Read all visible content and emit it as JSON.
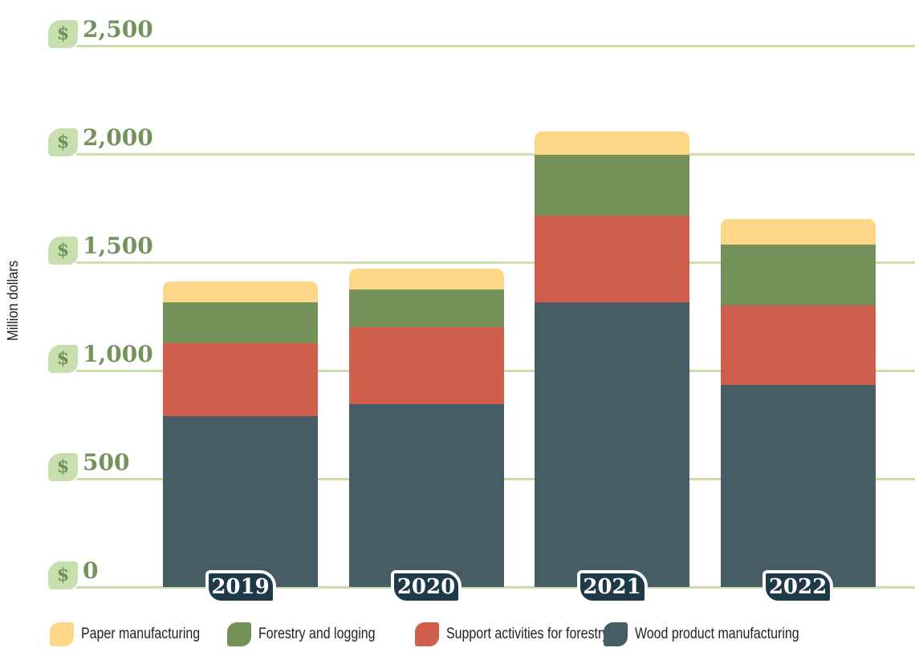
{
  "chart_data": {
    "type": "bar",
    "stacked": true,
    "ylabel": "Million dollars",
    "xlabel": "",
    "currency_symbol": "$",
    "categories": [
      "2019",
      "2020",
      "2021",
      "2022"
    ],
    "series": [
      {
        "name": "Wood product manufacturing",
        "color": "#465D66",
        "values": [
          790,
          845,
          1315,
          935
        ]
      },
      {
        "name": "Support activities for forestry",
        "color": "#D05E4C",
        "values": [
          335,
          355,
          400,
          365
        ]
      },
      {
        "name": "Forestry and logging",
        "color": "#74915A",
        "values": [
          190,
          175,
          280,
          280
        ]
      },
      {
        "name": "Paper manufacturing",
        "color": "#FDD687",
        "values": [
          95,
          95,
          110,
          120
        ]
      }
    ],
    "legend_order": [
      3,
      2,
      1,
      0
    ],
    "legend_position": "bottom",
    "grid": true,
    "ylim": [
      0,
      2500
    ],
    "yticks": [
      {
        "value": 0,
        "label": "0"
      },
      {
        "value": 500,
        "label": "500"
      },
      {
        "value": 1000,
        "label": "1,000"
      },
      {
        "value": 1500,
        "label": "1,500"
      },
      {
        "value": 2000,
        "label": "2,000"
      },
      {
        "value": 2500,
        "label": "2,500"
      }
    ]
  },
  "colors": {
    "grid": "#CBDFAC",
    "tick_badge_bg": "#C7DEAE",
    "tick_text": "#74935C",
    "dollar_icon": "#6D9055",
    "year_badge_bg": "#1E3948",
    "year_badge_text": "#FFFFFF",
    "body_text": "#231F20",
    "background": "#FFFFFF"
  }
}
